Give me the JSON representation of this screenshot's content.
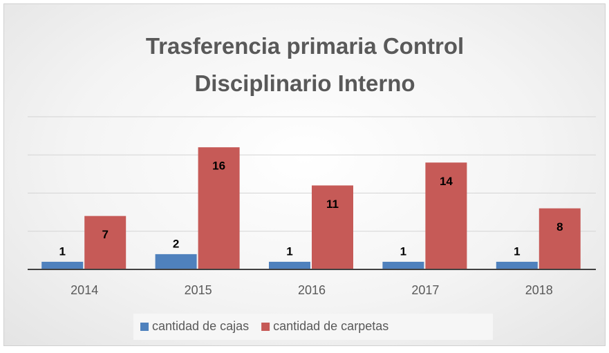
{
  "chart_data": {
    "type": "bar",
    "title": "Trasferencia primaria Control Disciplinario Interno",
    "categories": [
      "2014",
      "2015",
      "2016",
      "2017",
      "2018"
    ],
    "series": [
      {
        "name": "cantidad de cajas",
        "color": "#4f81bd",
        "values": [
          1,
          2,
          1,
          1,
          1
        ]
      },
      {
        "name": "cantidad de carpetas",
        "color": "#c65a57",
        "values": [
          7,
          16,
          11,
          14,
          8
        ]
      }
    ],
    "ylim": [
      0,
      20
    ],
    "yticks": [
      0,
      5,
      10,
      15,
      20
    ],
    "grid": true,
    "legend": "bottom"
  }
}
